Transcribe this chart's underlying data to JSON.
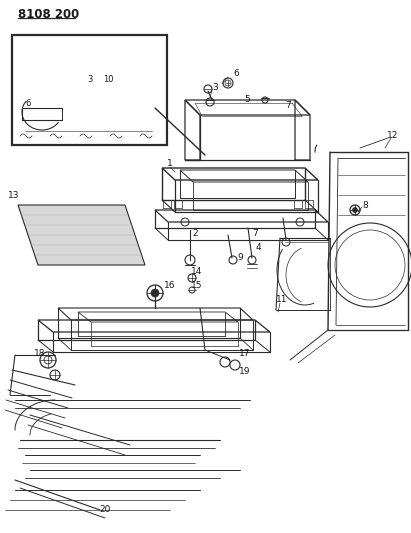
{
  "title": "8108 200",
  "bg_color": "#ffffff",
  "line_color": "#2a2a2a",
  "text_color": "#1a1a1a",
  "title_fontsize": 8.5,
  "label_fontsize": 6.5,
  "figsize": [
    4.11,
    5.33
  ],
  "dpi": 100
}
